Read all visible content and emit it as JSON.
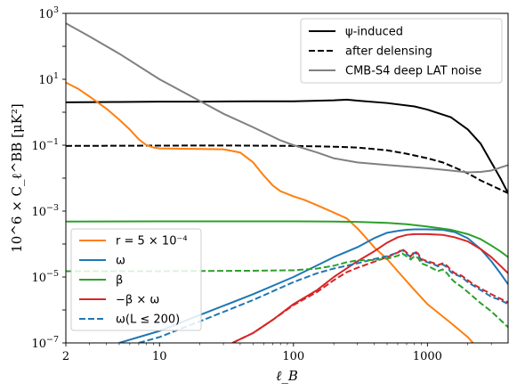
{
  "chart_data": {
    "type": "line",
    "xlabel": "ℓ_B",
    "ylabel": "10^6 × C_ℓ^BB [μK²]",
    "xscale": "log",
    "yscale": "log",
    "xlim": [
      2,
      4000
    ],
    "ylim": [
      1e-07,
      1000
    ],
    "x_ticks": [
      {
        "value": 2,
        "label": "2"
      },
      {
        "value": 10,
        "label": "10"
      },
      {
        "value": 100,
        "label": "100"
      },
      {
        "value": 1000,
        "label": "1000"
      }
    ],
    "y_ticks": [
      {
        "value": 1e-07,
        "mant": "10",
        "exp": "−7"
      },
      {
        "value": 1e-05,
        "mant": "10",
        "exp": "−5"
      },
      {
        "value": 0.001,
        "mant": "10",
        "exp": "−3"
      },
      {
        "value": 0.1,
        "mant": "10",
        "exp": "−1"
      },
      {
        "value": 10,
        "mant": "10",
        "exp": "1"
      },
      {
        "value": 1000,
        "mant": "10",
        "exp": "3"
      }
    ],
    "legends": [
      {
        "position": "upper right",
        "entries": [
          {
            "series": "psi_induced",
            "label": "ψ-induced"
          },
          {
            "series": "after_delensing",
            "label": "after delensing"
          },
          {
            "series": "cmbs4_noise",
            "label": "CMB-S4 deep LAT noise"
          }
        ]
      },
      {
        "position": "lower left",
        "entries": [
          {
            "series": "r_tensor",
            "label": "r = 5 × 10⁻⁴"
          },
          {
            "series": "omega",
            "label": "ω"
          },
          {
            "series": "beta",
            "label": "β"
          },
          {
            "series": "minus_beta_omega",
            "label": "−β × ω"
          },
          {
            "series": "omega_L200",
            "label": "ω(L ≤ 200)"
          }
        ]
      }
    ],
    "series": [
      {
        "id": "psi_induced",
        "name": "ψ-induced",
        "color": "#000000",
        "dash": "solid",
        "points": [
          [
            2,
            2.0
          ],
          [
            5,
            2.05
          ],
          [
            10,
            2.1
          ],
          [
            20,
            2.1
          ],
          [
            50,
            2.15
          ],
          [
            100,
            2.15
          ],
          [
            200,
            2.3
          ],
          [
            250,
            2.4
          ],
          [
            300,
            2.25
          ],
          [
            500,
            1.9
          ],
          [
            800,
            1.5
          ],
          [
            1000,
            1.2
          ],
          [
            1500,
            0.7
          ],
          [
            2000,
            0.3
          ],
          [
            2500,
            0.11
          ],
          [
            3000,
            0.03
          ],
          [
            3500,
            0.01
          ],
          [
            4000,
            0.0035
          ]
        ]
      },
      {
        "id": "after_delensing",
        "name": "after delensing",
        "color": "#000000",
        "dash": "dashed",
        "points": [
          [
            2,
            0.095
          ],
          [
            10,
            0.097
          ],
          [
            30,
            0.098
          ],
          [
            100,
            0.095
          ],
          [
            200,
            0.09
          ],
          [
            300,
            0.085
          ],
          [
            500,
            0.07
          ],
          [
            700,
            0.055
          ],
          [
            1000,
            0.04
          ],
          [
            1300,
            0.03
          ],
          [
            1600,
            0.021
          ],
          [
            2000,
            0.014
          ],
          [
            2500,
            0.0085
          ],
          [
            3000,
            0.006
          ],
          [
            4000,
            0.0035
          ]
        ]
      },
      {
        "id": "cmbs4_noise",
        "name": "CMB-S4 deep LAT noise",
        "color": "#808080",
        "dash": "solid",
        "points": [
          [
            2,
            500
          ],
          [
            3,
            200
          ],
          [
            5,
            60
          ],
          [
            10,
            10
          ],
          [
            20,
            2.2
          ],
          [
            30,
            0.9
          ],
          [
            50,
            0.35
          ],
          [
            80,
            0.14
          ],
          [
            100,
            0.1
          ],
          [
            150,
            0.06
          ],
          [
            200,
            0.04
          ],
          [
            300,
            0.03
          ],
          [
            500,
            0.025
          ],
          [
            1000,
            0.02
          ],
          [
            1500,
            0.017
          ],
          [
            2000,
            0.015
          ],
          [
            2500,
            0.0155
          ],
          [
            3000,
            0.017
          ],
          [
            4000,
            0.025
          ]
        ]
      },
      {
        "id": "r_tensor",
        "name": "r = 5 × 10⁻⁴",
        "color": "#ff7f0e",
        "dash": "solid",
        "points": [
          [
            2,
            8
          ],
          [
            2.5,
            5
          ],
          [
            3,
            3
          ],
          [
            4,
            1.3
          ],
          [
            5,
            0.6
          ],
          [
            6,
            0.3
          ],
          [
            7,
            0.15
          ],
          [
            8,
            0.1
          ],
          [
            9,
            0.085
          ],
          [
            10,
            0.08
          ],
          [
            15,
            0.078
          ],
          [
            20,
            0.077
          ],
          [
            30,
            0.075
          ],
          [
            40,
            0.06
          ],
          [
            50,
            0.03
          ],
          [
            60,
            0.012
          ],
          [
            70,
            0.006
          ],
          [
            80,
            0.004
          ],
          [
            100,
            0.0028
          ],
          [
            120,
            0.0022
          ],
          [
            150,
            0.0015
          ],
          [
            200,
            0.0009
          ],
          [
            250,
            0.0006
          ],
          [
            300,
            0.0003
          ],
          [
            350,
            0.00015
          ],
          [
            400,
            8e-05
          ],
          [
            500,
            3.5e-05
          ],
          [
            600,
            1.5e-05
          ],
          [
            800,
            4e-06
          ],
          [
            1000,
            1.5e-06
          ],
          [
            1500,
            4e-07
          ],
          [
            2000,
            1.5e-07
          ],
          [
            2300,
            8e-08
          ]
        ]
      },
      {
        "id": "omega",
        "name": "ω",
        "color": "#1f77b4",
        "dash": "solid",
        "points": [
          [
            5,
            1e-07
          ],
          [
            7,
            1.5e-07
          ],
          [
            10,
            2.3e-07
          ],
          [
            20,
            7e-07
          ],
          [
            50,
            3e-06
          ],
          [
            100,
            1e-05
          ],
          [
            200,
            4e-05
          ],
          [
            300,
            8e-05
          ],
          [
            400,
            0.00015
          ],
          [
            500,
            0.00022
          ],
          [
            600,
            0.00025
          ],
          [
            700,
            0.00027
          ],
          [
            800,
            0.00028
          ],
          [
            1000,
            0.00028
          ],
          [
            1300,
            0.00027
          ],
          [
            1600,
            0.00023
          ],
          [
            2000,
            0.00015
          ],
          [
            2500,
            7e-05
          ],
          [
            3000,
            3e-05
          ],
          [
            3500,
            1.3e-05
          ],
          [
            4000,
            6e-06
          ]
        ]
      },
      {
        "id": "beta",
        "name": "β",
        "color": "#2ca02c",
        "dash": "solid",
        "points": [
          [
            2,
            0.00048
          ],
          [
            10,
            0.00049
          ],
          [
            50,
            0.00049
          ],
          [
            100,
            0.00049
          ],
          [
            200,
            0.00048
          ],
          [
            300,
            0.00047
          ],
          [
            500,
            0.00044
          ],
          [
            700,
            0.0004
          ],
          [
            1000,
            0.00034
          ],
          [
            1500,
            0.00027
          ],
          [
            2000,
            0.0002
          ],
          [
            2500,
            0.00014
          ],
          [
            3000,
            9e-05
          ],
          [
            3500,
            6e-05
          ],
          [
            4000,
            4e-05
          ]
        ]
      },
      {
        "id": "minus_beta_omega",
        "name": "−β × ω",
        "color": "#d62728",
        "dash": "solid",
        "points": [
          [
            35,
            1e-07
          ],
          [
            50,
            2e-07
          ],
          [
            70,
            5e-07
          ],
          [
            100,
            1.5e-06
          ],
          [
            150,
            4e-06
          ],
          [
            200,
            1e-05
          ],
          [
            300,
            3e-05
          ],
          [
            400,
            6e-05
          ],
          [
            500,
            0.00011
          ],
          [
            600,
            0.00016
          ],
          [
            700,
            0.00019
          ],
          [
            800,
            0.0002
          ],
          [
            1000,
            0.0002
          ],
          [
            1300,
            0.00019
          ],
          [
            1600,
            0.00016
          ],
          [
            2000,
            0.00012
          ],
          [
            2500,
            7e-05
          ],
          [
            3000,
            4e-05
          ],
          [
            3500,
            2.2e-05
          ],
          [
            4000,
            1.3e-05
          ]
        ]
      },
      {
        "id": "omega_L200",
        "name": "ω(L ≤ 200)",
        "color": "#1f77b4",
        "dash": "dashed",
        "points": [
          [
            7,
            1e-07
          ],
          [
            10,
            1.5e-07
          ],
          [
            20,
            4.5e-07
          ],
          [
            50,
            2e-06
          ],
          [
            100,
            7e-06
          ],
          [
            150,
            1.3e-05
          ],
          [
            200,
            1.8e-05
          ],
          [
            250,
            2.2e-05
          ],
          [
            300,
            2.6e-05
          ],
          [
            400,
            3.5e-05
          ],
          [
            500,
            4.3e-05
          ],
          [
            600,
            5.5e-05
          ],
          [
            650,
            6.5e-05
          ],
          [
            700,
            5e-05
          ],
          [
            750,
            4e-05
          ],
          [
            800,
            5.5e-05
          ],
          [
            850,
            4.8e-05
          ],
          [
            900,
            3.2e-05
          ],
          [
            1000,
            2.8e-05
          ],
          [
            1100,
            2.5e-05
          ],
          [
            1200,
            2.1e-05
          ],
          [
            1300,
            2.4e-05
          ],
          [
            1400,
            2e-05
          ],
          [
            1500,
            1.4e-05
          ],
          [
            1600,
            1.2e-05
          ],
          [
            1800,
            1e-05
          ],
          [
            2000,
            7e-06
          ],
          [
            2200,
            5.5e-06
          ],
          [
            2500,
            4e-06
          ],
          [
            3000,
            2.5e-06
          ],
          [
            3500,
            2e-06
          ],
          [
            4000,
            1.5e-06
          ]
        ]
      },
      {
        "id": "omega_L200_red",
        "name": "",
        "color": "#d62728",
        "dash": "dashed",
        "points": [
          [
            35,
            1e-07
          ],
          [
            50,
            2e-07
          ],
          [
            70,
            5e-07
          ],
          [
            100,
            1.4e-06
          ],
          [
            150,
            3.5e-06
          ],
          [
            200,
            8e-06
          ],
          [
            250,
            1.4e-05
          ],
          [
            300,
            1.9e-05
          ],
          [
            400,
            2.9e-05
          ],
          [
            500,
            4e-05
          ],
          [
            600,
            5.5e-05
          ],
          [
            650,
            7e-05
          ],
          [
            700,
            5.5e-05
          ],
          [
            750,
            4.2e-05
          ],
          [
            800,
            6e-05
          ],
          [
            850,
            5.2e-05
          ],
          [
            900,
            3.5e-05
          ],
          [
            1000,
            3e-05
          ],
          [
            1100,
            2.7e-05
          ],
          [
            1200,
            2.3e-05
          ],
          [
            1300,
            2.6e-05
          ],
          [
            1400,
            2.2e-05
          ],
          [
            1500,
            1.6e-05
          ],
          [
            1600,
            1.3e-05
          ],
          [
            1800,
            1.1e-05
          ],
          [
            2000,
            8e-06
          ],
          [
            2200,
            6e-06
          ],
          [
            2500,
            4.5e-06
          ],
          [
            3000,
            3e-06
          ],
          [
            3500,
            2.2e-06
          ],
          [
            4000,
            1.7e-06
          ]
        ]
      },
      {
        "id": "beta_L200",
        "name": "",
        "color": "#2ca02c",
        "dash": "dashed",
        "points": [
          [
            2,
            1.5e-05
          ],
          [
            10,
            1.5e-05
          ],
          [
            50,
            1.55e-05
          ],
          [
            100,
            1.6e-05
          ],
          [
            150,
            1.8e-05
          ],
          [
            200,
            2.2e-05
          ],
          [
            250,
            2.8e-05
          ],
          [
            300,
            3.2e-05
          ],
          [
            400,
            3.3e-05
          ],
          [
            500,
            3.6e-05
          ],
          [
            600,
            4.4e-05
          ],
          [
            650,
            5.2e-05
          ],
          [
            700,
            4.2e-05
          ],
          [
            750,
            3.4e-05
          ],
          [
            800,
            4.3e-05
          ],
          [
            850,
            3.8e-05
          ],
          [
            900,
            2.6e-05
          ],
          [
            1000,
            2.2e-05
          ],
          [
            1100,
            1.8e-05
          ],
          [
            1200,
            1.5e-05
          ],
          [
            1300,
            1.7e-05
          ],
          [
            1400,
            1.3e-05
          ],
          [
            1500,
            9e-06
          ],
          [
            1600,
            7e-06
          ],
          [
            1800,
            5e-06
          ],
          [
            2000,
            3.5e-06
          ],
          [
            2200,
            2.5e-06
          ],
          [
            2500,
            1.6e-06
          ],
          [
            3000,
            9e-07
          ],
          [
            3500,
            5e-07
          ],
          [
            4000,
            3e-07
          ]
        ]
      }
    ]
  }
}
